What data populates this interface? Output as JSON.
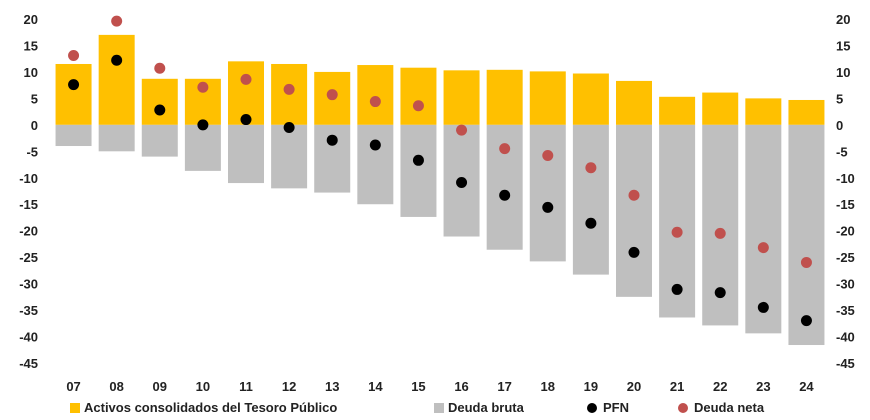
{
  "chart_data": {
    "type": "bar",
    "categories": [
      "07",
      "08",
      "09",
      "10",
      "11",
      "12",
      "13",
      "14",
      "15",
      "16",
      "17",
      "18",
      "19",
      "20",
      "21",
      "22",
      "23",
      "24"
    ],
    "ylim": [
      -45,
      20
    ],
    "yticks": [
      20,
      15,
      10,
      5,
      0,
      -5,
      -10,
      -15,
      -20,
      -25,
      -30,
      -35,
      -40,
      -45
    ],
    "ytick_labels": [
      "20",
      "15",
      "10",
      "5",
      "0",
      "-5",
      "-10",
      "-15",
      "-20",
      "-25",
      "-30",
      "-35",
      "-40",
      "-45"
    ],
    "grid": false,
    "legend_position": "bottom",
    "series": [
      {
        "name": "Activos consolidados del Tesoro Público",
        "kind": "bar",
        "color": "#FFC000",
        "values": [
          11.5,
          17.0,
          8.7,
          8.7,
          12.0,
          11.5,
          10.0,
          11.3,
          10.8,
          10.3,
          10.4,
          10.1,
          9.7,
          8.3,
          5.3,
          6.1,
          5.0,
          4.7
        ]
      },
      {
        "name": "Deuda bruta",
        "kind": "bar",
        "color": "#BFBFBF",
        "values": [
          -4.0,
          -5.0,
          -6.0,
          -8.7,
          -11.0,
          -12.0,
          -12.8,
          -15.0,
          -17.4,
          -21.1,
          -23.6,
          -25.8,
          -28.3,
          -32.5,
          -36.4,
          -37.9,
          -39.4,
          -41.6
        ]
      },
      {
        "name": "PFN",
        "kind": "point",
        "color": "#000000",
        "values": [
          7.6,
          12.2,
          2.8,
          0.0,
          1.0,
          -0.5,
          -2.9,
          -3.8,
          -6.7,
          -10.9,
          -13.3,
          -15.6,
          -18.6,
          -24.1,
          -31.1,
          -31.7,
          -34.5,
          -37.0
        ]
      },
      {
        "name": "Deuda neta",
        "kind": "point",
        "color": "#C0504D",
        "values": [
          13.1,
          19.6,
          10.7,
          7.1,
          8.6,
          6.7,
          5.7,
          4.4,
          3.6,
          -1.0,
          -4.5,
          -5.8,
          -8.1,
          -13.3,
          -20.3,
          -20.5,
          -23.2,
          -26.0
        ]
      }
    ]
  }
}
